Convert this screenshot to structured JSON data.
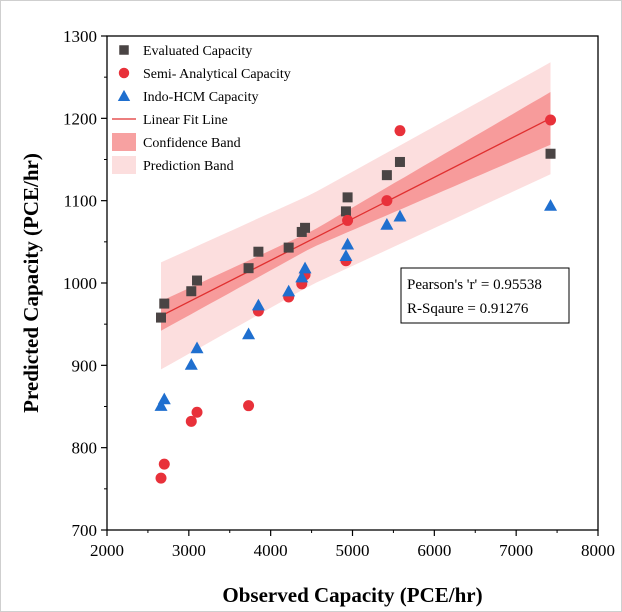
{
  "chart_data": {
    "type": "scatter",
    "title": "",
    "xlabel": "Observed Capacity (PCE/hr)",
    "ylabel": "Predicted Capacity (PCE/hr)",
    "xlim": [
      2000,
      8000
    ],
    "ylim": [
      700,
      1300
    ],
    "xticks": [
      2000,
      3000,
      4000,
      5000,
      6000,
      7000,
      8000
    ],
    "yticks": [
      700,
      800,
      900,
      1000,
      1100,
      1200,
      1300
    ],
    "grid": false,
    "legend_position": "top-left",
    "series": [
      {
        "name": "Evaluated Capacity",
        "marker": "square",
        "color": "#4a4444",
        "points": [
          [
            2660,
            958
          ],
          [
            2700,
            975
          ],
          [
            3030,
            990
          ],
          [
            3100,
            1003
          ],
          [
            3730,
            1018
          ],
          [
            3850,
            1038
          ],
          [
            4220,
            1043
          ],
          [
            4380,
            1062
          ],
          [
            4420,
            1067
          ],
          [
            4920,
            1087
          ],
          [
            4940,
            1104
          ],
          [
            5420,
            1131
          ],
          [
            5580,
            1147
          ],
          [
            7420,
            1157
          ]
        ]
      },
      {
        "name": "Semi- Analytical Capacity",
        "marker": "circle",
        "color": "#e8313a",
        "points": [
          [
            2660,
            763
          ],
          [
            2700,
            780
          ],
          [
            3030,
            832
          ],
          [
            3100,
            843
          ],
          [
            3730,
            851
          ],
          [
            3850,
            966
          ],
          [
            4220,
            983
          ],
          [
            4380,
            999
          ],
          [
            4420,
            1010
          ],
          [
            4920,
            1027
          ],
          [
            4940,
            1076
          ],
          [
            5420,
            1100
          ],
          [
            5580,
            1185
          ],
          [
            7420,
            1198
          ]
        ]
      },
      {
        "name": "Indo-HCM Capacity",
        "marker": "triangle",
        "color": "#1f6fcf",
        "points": [
          [
            2660,
            851
          ],
          [
            2700,
            859
          ],
          [
            3030,
            901
          ],
          [
            3100,
            921
          ],
          [
            3730,
            938
          ],
          [
            3850,
            973
          ],
          [
            4220,
            990
          ],
          [
            4380,
            1007
          ],
          [
            4420,
            1018
          ],
          [
            4920,
            1033
          ],
          [
            4940,
            1047
          ],
          [
            5420,
            1071
          ],
          [
            5580,
            1081
          ],
          [
            7420,
            1094
          ]
        ]
      }
    ],
    "fit": {
      "name": "Linear Fit Line",
      "color": "#e03030",
      "x_range": [
        2660,
        7420
      ],
      "y_at_x_range": [
        960,
        1200
      ]
    },
    "confidence_band": {
      "name": "Confidence Band",
      "color": "#f58a8a",
      "half_width_at": [
        [
          2660,
          18
        ],
        [
          4500,
          10
        ],
        [
          7420,
          32
        ]
      ]
    },
    "prediction_band": {
      "name": "Prediction Band",
      "color": "#fbd3d3",
      "half_width_at": [
        [
          2660,
          65
        ],
        [
          4500,
          55
        ],
        [
          7420,
          68
        ]
      ]
    },
    "stats": {
      "pearson": "Pearson's 'r' = 0.95538",
      "rsquare": "R-Sqaure  = 0.91276"
    }
  }
}
